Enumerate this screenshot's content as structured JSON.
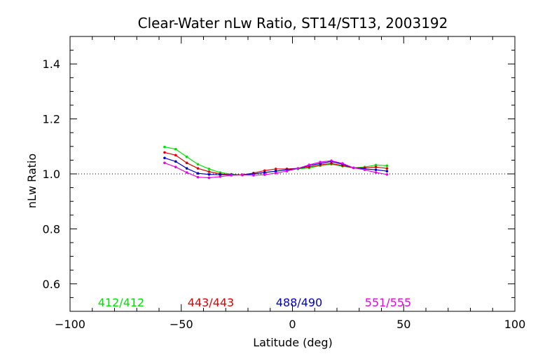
{
  "chart_data": {
    "type": "line",
    "title": "Clear-Water nLw Ratio, ST14/ST13, 2003192",
    "xlabel": "Latitude (deg)",
    "ylabel": "nLw Ratio",
    "xlim": [
      -100,
      100
    ],
    "ylim": [
      0.5,
      1.5
    ],
    "xticks": [
      -100,
      -50,
      0,
      50,
      100
    ],
    "xtick_labels": [
      "−100",
      "−50",
      "0",
      "50",
      "100"
    ],
    "yticks": [
      0.6,
      0.8,
      1.0,
      1.2,
      1.4
    ],
    "ytick_labels": [
      "0.6",
      "0.8",
      "1.0",
      "1.2",
      "1.4"
    ],
    "reference_line": 1.0,
    "legend_placement": "bottom inside",
    "x": [
      -57.5,
      -52.5,
      -47.5,
      -42.5,
      -37.5,
      -32.5,
      -27.5,
      -22.5,
      -17.5,
      -12.5,
      -7.5,
      -2.5,
      2.5,
      7.5,
      12.5,
      17.5,
      22.5,
      27.5,
      32.5,
      37.5,
      42.5
    ],
    "series": [
      {
        "name": "412/412",
        "color": "#00e000",
        "values": [
          1.098,
          1.09,
          1.062,
          1.035,
          1.018,
          1.005,
          0.999,
          0.996,
          1.0,
          1.005,
          1.01,
          1.015,
          1.018,
          1.022,
          1.03,
          1.035,
          1.028,
          1.022,
          1.025,
          1.032,
          1.03
        ]
      },
      {
        "name": "443/443",
        "color": "#e00000",
        "values": [
          1.078,
          1.068,
          1.04,
          1.02,
          1.008,
          1.0,
          0.997,
          0.997,
          1.003,
          1.012,
          1.018,
          1.018,
          1.02,
          1.025,
          1.033,
          1.038,
          1.03,
          1.022,
          1.022,
          1.025,
          1.02
        ]
      },
      {
        "name": "488/490",
        "color": "#0000cc",
        "values": [
          1.058,
          1.045,
          1.02,
          1.002,
          0.998,
          0.997,
          0.997,
          0.996,
          1.0,
          1.005,
          1.01,
          1.015,
          1.02,
          1.03,
          1.038,
          1.045,
          1.035,
          1.022,
          1.018,
          1.015,
          1.01
        ]
      },
      {
        "name": "551/555",
        "color": "#ee00ee",
        "values": [
          1.04,
          1.025,
          1.005,
          0.988,
          0.986,
          0.99,
          0.995,
          0.996,
          0.995,
          0.997,
          1.003,
          1.01,
          1.02,
          1.033,
          1.043,
          1.048,
          1.038,
          1.022,
          1.015,
          1.005,
          0.998
        ]
      }
    ]
  }
}
